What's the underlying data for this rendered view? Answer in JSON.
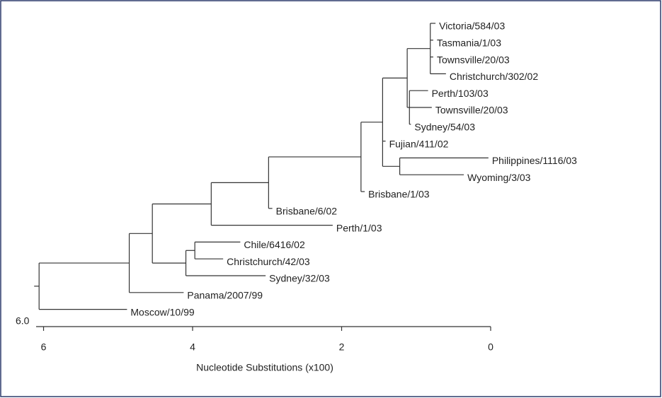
{
  "chart_data": {
    "type": "dendrogram",
    "xlabel": "Nucleotide Substitutions (x100)",
    "root_label": "6.0",
    "xlim": [
      6.1,
      0
    ],
    "xticks": [
      6,
      4,
      2,
      0
    ],
    "tree": {
      "dist": 6.06,
      "children": [
        {
          "dist": 4.85,
          "children": [
            {
              "dist": 4.54,
              "children": [
                {
                  "dist": 3.75,
                  "children": [
                    {
                      "dist": 2.98,
                      "children": [
                        {
                          "dist": 1.74,
                          "children": [
                            {
                              "dist": 1.45,
                              "children": [
                                {
                                  "dist": 1.12,
                                  "children": [
                                    {
                                      "dist": 0.81,
                                      "children": [
                                        {
                                          "label": "Victoria/584/03",
                                          "dist": 0.74
                                        },
                                        {
                                          "label": "Tasmania/1/03",
                                          "dist": 0.77
                                        },
                                        {
                                          "label": "Townsville/20/03",
                                          "dist": 0.77
                                        },
                                        {
                                          "label": "Christchurch/302/02",
                                          "dist": 0.6
                                        }
                                      ]
                                    },
                                    {
                                      "dist": 1.09,
                                      "children": [
                                        {
                                          "label": "Perth/103/03",
                                          "dist": 0.84
                                        },
                                        {
                                          "label": "Townsville/20/03",
                                          "dist": 0.79
                                        },
                                        {
                                          "label": "Sydney/54/03",
                                          "dist": 1.07
                                        }
                                      ]
                                    }
                                  ]
                                },
                                {
                                  "label": "Fujian/411/02",
                                  "dist": 1.41
                                },
                                {
                                  "dist": 1.22,
                                  "children": [
                                    {
                                      "label": "Philippines/1116/03",
                                      "dist": 0.03
                                    },
                                    {
                                      "label": "Wyoming/3/03",
                                      "dist": 0.36
                                    }
                                  ]
                                }
                              ]
                            },
                            {
                              "label": "Brisbane/1/03",
                              "dist": 1.69
                            }
                          ]
                        },
                        {
                          "label": "Brisbane/6/02",
                          "dist": 2.93
                        }
                      ]
                    },
                    {
                      "label": "Perth/1/03",
                      "dist": 2.12
                    }
                  ]
                },
                {
                  "dist": 4.09,
                  "children": [
                    {
                      "dist": 3.97,
                      "children": [
                        {
                          "label": "Chile/6416/02",
                          "dist": 3.36
                        },
                        {
                          "label": "Christchurch/42/03",
                          "dist": 3.59
                        }
                      ]
                    },
                    {
                      "label": "Sydney/32/03",
                      "dist": 3.02
                    }
                  ]
                }
              ]
            },
            {
              "label": "Panama/2007/99",
              "dist": 4.12
            }
          ]
        },
        {
          "label": "Moscow/10/99",
          "dist": 4.88
        }
      ]
    }
  }
}
